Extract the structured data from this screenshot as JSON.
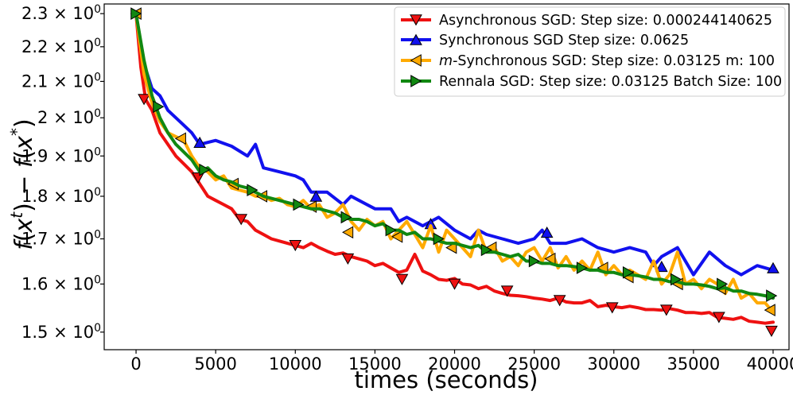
{
  "chart_data": {
    "type": "line",
    "xlabel": "times (seconds)",
    "ylabel": "f(x^t) − f(x^*)",
    "y_scale": "log",
    "xlim": [
      -2000,
      41000
    ],
    "ylim": [
      1.465,
      2.33
    ],
    "x_ticks": [
      0,
      5000,
      10000,
      15000,
      20000,
      25000,
      30000,
      35000,
      40000
    ],
    "x_tick_labels": [
      "0",
      "5000",
      "10000",
      "15000",
      "20000",
      "25000",
      "30000",
      "35000",
      "40000"
    ],
    "y_ticks": [
      {
        "value": 2.3,
        "mantissa": "2.3"
      },
      {
        "value": 2.2,
        "mantissa": "2.2"
      },
      {
        "value": 2.1,
        "mantissa": "2.1"
      },
      {
        "value": 2.0,
        "mantissa": "2"
      },
      {
        "value": 1.9,
        "mantissa": "1.9"
      },
      {
        "value": 1.8,
        "mantissa": "1.8"
      },
      {
        "value": 1.7,
        "mantissa": "1.7"
      },
      {
        "value": 1.6,
        "mantissa": "1.6"
      },
      {
        "value": 1.5,
        "mantissa": "1.5"
      }
    ],
    "y_tick_base": "10",
    "y_tick_exponent": "0",
    "legend_position": "top-right",
    "series": [
      {
        "name": "Asynchronous SGD: Step size: 0.000244140625",
        "color": "#ee1111",
        "marker": "triangle-down",
        "x": [
          0,
          300,
          600,
          1000,
          1500,
          2000,
          2500,
          3000,
          3500,
          4000,
          4500,
          5000,
          5500,
          6000,
          6500,
          7000,
          7500,
          8000,
          8500,
          9000,
          9500,
          10000,
          10500,
          11000,
          11500,
          12000,
          12500,
          13000,
          13500,
          14000,
          14500,
          15000,
          15500,
          16000,
          16500,
          17000,
          17500,
          18000,
          18500,
          19000,
          19500,
          20000,
          20500,
          21000,
          21500,
          22000,
          22500,
          23000,
          23500,
          24000,
          24500,
          25000,
          25500,
          26000,
          26500,
          27000,
          27500,
          28000,
          28500,
          29000,
          29500,
          30000,
          30500,
          31000,
          31500,
          32000,
          32500,
          33000,
          33500,
          34000,
          34500,
          35000,
          35500,
          36000,
          36500,
          37000,
          37500,
          38000,
          38500,
          39000,
          39500,
          40000
        ],
        "values": [
          2.3,
          2.14,
          2.05,
          2.02,
          1.96,
          1.93,
          1.9,
          1.88,
          1.86,
          1.83,
          1.8,
          1.79,
          1.78,
          1.77,
          1.745,
          1.74,
          1.72,
          1.71,
          1.7,
          1.695,
          1.69,
          1.685,
          1.68,
          1.69,
          1.68,
          1.672,
          1.665,
          1.668,
          1.66,
          1.655,
          1.65,
          1.64,
          1.645,
          1.635,
          1.625,
          1.63,
          1.665,
          1.628,
          1.62,
          1.61,
          1.608,
          1.612,
          1.6,
          1.598,
          1.59,
          1.595,
          1.585,
          1.58,
          1.576,
          1.575,
          1.573,
          1.57,
          1.568,
          1.565,
          1.57,
          1.562,
          1.56,
          1.56,
          1.565,
          1.552,
          1.555,
          1.552,
          1.55,
          1.553,
          1.55,
          1.546,
          1.546,
          1.545,
          1.548,
          1.545,
          1.54,
          1.54,
          1.538,
          1.54,
          1.53,
          1.528,
          1.526,
          1.53,
          1.522,
          1.52,
          1.518,
          1.52
        ],
        "marker_x": [
          500,
          3900,
          6600,
          10000,
          13300,
          16700,
          20000,
          23300,
          26600,
          29900,
          33300,
          36600,
          39900
        ],
        "marker_values": [
          2.05,
          1.845,
          1.745,
          1.685,
          1.655,
          1.61,
          1.6,
          1.585,
          1.565,
          1.55,
          1.545,
          1.53,
          1.502
        ]
      },
      {
        "name": "Synchronous SGD Step size: 0.0625",
        "color": "#1111ee",
        "marker": "triangle-up",
        "x": [
          0,
          500,
          1000,
          1500,
          2000,
          2500,
          3000,
          3500,
          4000,
          5000,
          6000,
          7000,
          7500,
          8000,
          9000,
          10000,
          10500,
          11000,
          12000,
          13000,
          13500,
          14000,
          15000,
          16000,
          16500,
          17000,
          18000,
          18500,
          19000,
          20000,
          21000,
          21500,
          22000,
          23000,
          24000,
          25000,
          25500,
          26000,
          27000,
          28000,
          29000,
          30000,
          31000,
          32000,
          32500,
          33000,
          34000,
          35000,
          36000,
          37000,
          38000,
          39000,
          40000
        ],
        "values": [
          2.3,
          2.15,
          2.08,
          2.06,
          2.02,
          2.0,
          1.98,
          1.96,
          1.93,
          1.94,
          1.925,
          1.9,
          1.93,
          1.87,
          1.86,
          1.85,
          1.84,
          1.81,
          1.81,
          1.78,
          1.8,
          1.79,
          1.77,
          1.77,
          1.74,
          1.75,
          1.73,
          1.74,
          1.75,
          1.72,
          1.7,
          1.72,
          1.71,
          1.7,
          1.69,
          1.7,
          1.72,
          1.69,
          1.69,
          1.7,
          1.68,
          1.67,
          1.68,
          1.67,
          1.64,
          1.66,
          1.68,
          1.62,
          1.67,
          1.64,
          1.62,
          1.64,
          1.63
        ],
        "marker_x": [
          4000,
          11300,
          18500,
          25800,
          33000,
          40000
        ],
        "marker_values": [
          1.935,
          1.8,
          1.735,
          1.715,
          1.638,
          1.635
        ]
      },
      {
        "name": "m-Synchronous  SGD: Step size: 0.03125 m: 100",
        "name_italic": "m",
        "name_rest": "-Synchronous  SGD: Step size: 0.03125 m: 100",
        "color": "#ffaa00",
        "marker": "triangle-left",
        "x": [
          0,
          500,
          1000,
          1500,
          2000,
          2500,
          3000,
          3500,
          4000,
          4500,
          5000,
          5500,
          6000,
          6500,
          7000,
          7500,
          8000,
          8500,
          9000,
          9500,
          10000,
          10500,
          11000,
          11500,
          12000,
          12500,
          13000,
          13500,
          14000,
          14500,
          15000,
          15500,
          16000,
          16500,
          17000,
          17500,
          18000,
          18500,
          19000,
          19500,
          20000,
          20500,
          21000,
          21500,
          22000,
          22500,
          23000,
          23500,
          24000,
          24500,
          25000,
          25500,
          26000,
          26500,
          27000,
          27500,
          28000,
          28500,
          29000,
          29500,
          30000,
          30500,
          31000,
          31500,
          32000,
          32500,
          33000,
          33500,
          34000,
          34500,
          35000,
          35500,
          36000,
          36500,
          37000,
          37500,
          38000,
          38500,
          39000,
          39500,
          40000
        ],
        "values": [
          2.3,
          2.12,
          2.04,
          1.99,
          1.96,
          1.95,
          1.94,
          1.9,
          1.87,
          1.86,
          1.84,
          1.85,
          1.82,
          1.815,
          1.81,
          1.8,
          1.8,
          1.79,
          1.795,
          1.78,
          1.775,
          1.79,
          1.77,
          1.78,
          1.75,
          1.76,
          1.78,
          1.74,
          1.72,
          1.745,
          1.73,
          1.74,
          1.7,
          1.72,
          1.74,
          1.71,
          1.68,
          1.73,
          1.67,
          1.72,
          1.7,
          1.68,
          1.66,
          1.72,
          1.67,
          1.68,
          1.65,
          1.66,
          1.64,
          1.67,
          1.68,
          1.65,
          1.68,
          1.635,
          1.66,
          1.63,
          1.65,
          1.63,
          1.67,
          1.62,
          1.64,
          1.62,
          1.63,
          1.62,
          1.61,
          1.65,
          1.6,
          1.62,
          1.67,
          1.6,
          1.61,
          1.59,
          1.61,
          1.6,
          1.58,
          1.61,
          1.57,
          1.58,
          1.56,
          1.56,
          1.54
        ],
        "marker_x": [
          0,
          2800,
          6100,
          7900,
          11000,
          13300,
          16400,
          19800,
          22300,
          26000,
          29300,
          30900,
          34000,
          36700,
          39800
        ],
        "marker_values": [
          2.3,
          1.945,
          1.83,
          1.8,
          1.775,
          1.715,
          1.705,
          1.68,
          1.68,
          1.655,
          1.635,
          1.615,
          1.6,
          1.59,
          1.545
        ]
      },
      {
        "name": "Rennala SGD: Step size: 0.03125 Batch Size: 100",
        "color": "#118811",
        "marker": "triangle-right",
        "x": [
          0,
          500,
          1000,
          1500,
          2000,
          2500,
          3000,
          3500,
          4000,
          4500,
          5000,
          5500,
          6000,
          6500,
          7000,
          7500,
          8000,
          8500,
          9000,
          9500,
          10000,
          10500,
          11000,
          11500,
          12000,
          12500,
          13000,
          13500,
          14000,
          14500,
          15000,
          15500,
          16000,
          16500,
          17000,
          17500,
          18000,
          18500,
          19000,
          19500,
          20000,
          20500,
          21000,
          21500,
          22000,
          22500,
          23000,
          23500,
          24000,
          24500,
          25000,
          25500,
          26000,
          26500,
          27000,
          27500,
          28000,
          28500,
          29000,
          29500,
          30000,
          30500,
          31000,
          31500,
          32000,
          32500,
          33000,
          33500,
          34000,
          34500,
          35000,
          35500,
          36000,
          36500,
          37000,
          37500,
          38000,
          38500,
          39000,
          39500,
          40000
        ],
        "values": [
          2.3,
          2.16,
          2.06,
          2.0,
          1.96,
          1.93,
          1.91,
          1.89,
          1.86,
          1.87,
          1.85,
          1.84,
          1.835,
          1.825,
          1.82,
          1.81,
          1.8,
          1.795,
          1.79,
          1.785,
          1.78,
          1.775,
          1.77,
          1.77,
          1.765,
          1.76,
          1.75,
          1.745,
          1.745,
          1.74,
          1.73,
          1.735,
          1.72,
          1.72,
          1.71,
          1.715,
          1.7,
          1.7,
          1.695,
          1.69,
          1.69,
          1.685,
          1.68,
          1.685,
          1.67,
          1.67,
          1.665,
          1.66,
          1.665,
          1.65,
          1.65,
          1.645,
          1.645,
          1.64,
          1.64,
          1.638,
          1.635,
          1.63,
          1.63,
          1.625,
          1.625,
          1.62,
          1.62,
          1.618,
          1.615,
          1.61,
          1.61,
          1.605,
          1.605,
          1.6,
          1.6,
          1.598,
          1.595,
          1.59,
          1.592,
          1.585,
          1.585,
          1.58,
          1.578,
          1.575,
          1.57
        ],
        "marker_x": [
          0,
          1400,
          4300,
          7300,
          10200,
          13200,
          16000,
          19000,
          22000,
          25000,
          28000,
          30900,
          33900,
          36800,
          39900
        ],
        "marker_values": [
          2.3,
          2.03,
          1.865,
          1.815,
          1.78,
          1.75,
          1.72,
          1.7,
          1.675,
          1.65,
          1.635,
          1.625,
          1.61,
          1.6,
          1.575
        ]
      }
    ]
  }
}
